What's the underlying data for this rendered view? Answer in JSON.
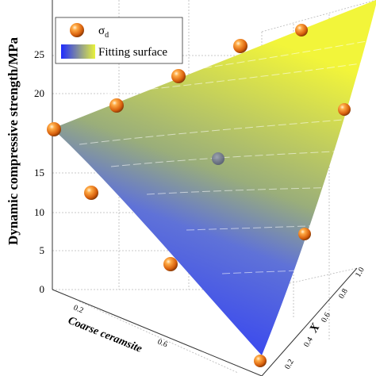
{
  "chart_data": {
    "type": "scatter",
    "subtype": "3d-surface-with-points",
    "zlabel": "Dynamic compressive strength/MPa",
    "xlabel": "Coarse ceramsite",
    "ylabel": "X",
    "z_ticks": [
      "0",
      "5",
      "10",
      "15",
      "20",
      "25"
    ],
    "x_ticks": [
      "0.2",
      "0.6"
    ],
    "y_ticks": [
      "0.2",
      "0.4",
      "0.6",
      "0.8",
      "1.0"
    ],
    "zlim": [
      0,
      27
    ],
    "grid": true,
    "legend": {
      "placement": "top-left",
      "entries": [
        {
          "name": "σd",
          "symbol": "sphere",
          "color": "#f07a1a"
        },
        {
          "name": "Fitting surface",
          "symbol": "gradient",
          "colors": [
            "#1e2bff",
            "#e8f23a"
          ]
        }
      ]
    },
    "points_z": [
      16.7,
      18.8,
      21.5,
      24.2,
      25.9,
      18.4,
      10.3,
      3.4,
      6.4,
      13.8,
      0.0
    ],
    "surface_colors": {
      "low": "#1f2bff",
      "mid": "#8aa596",
      "high": "#f2f53a"
    }
  }
}
